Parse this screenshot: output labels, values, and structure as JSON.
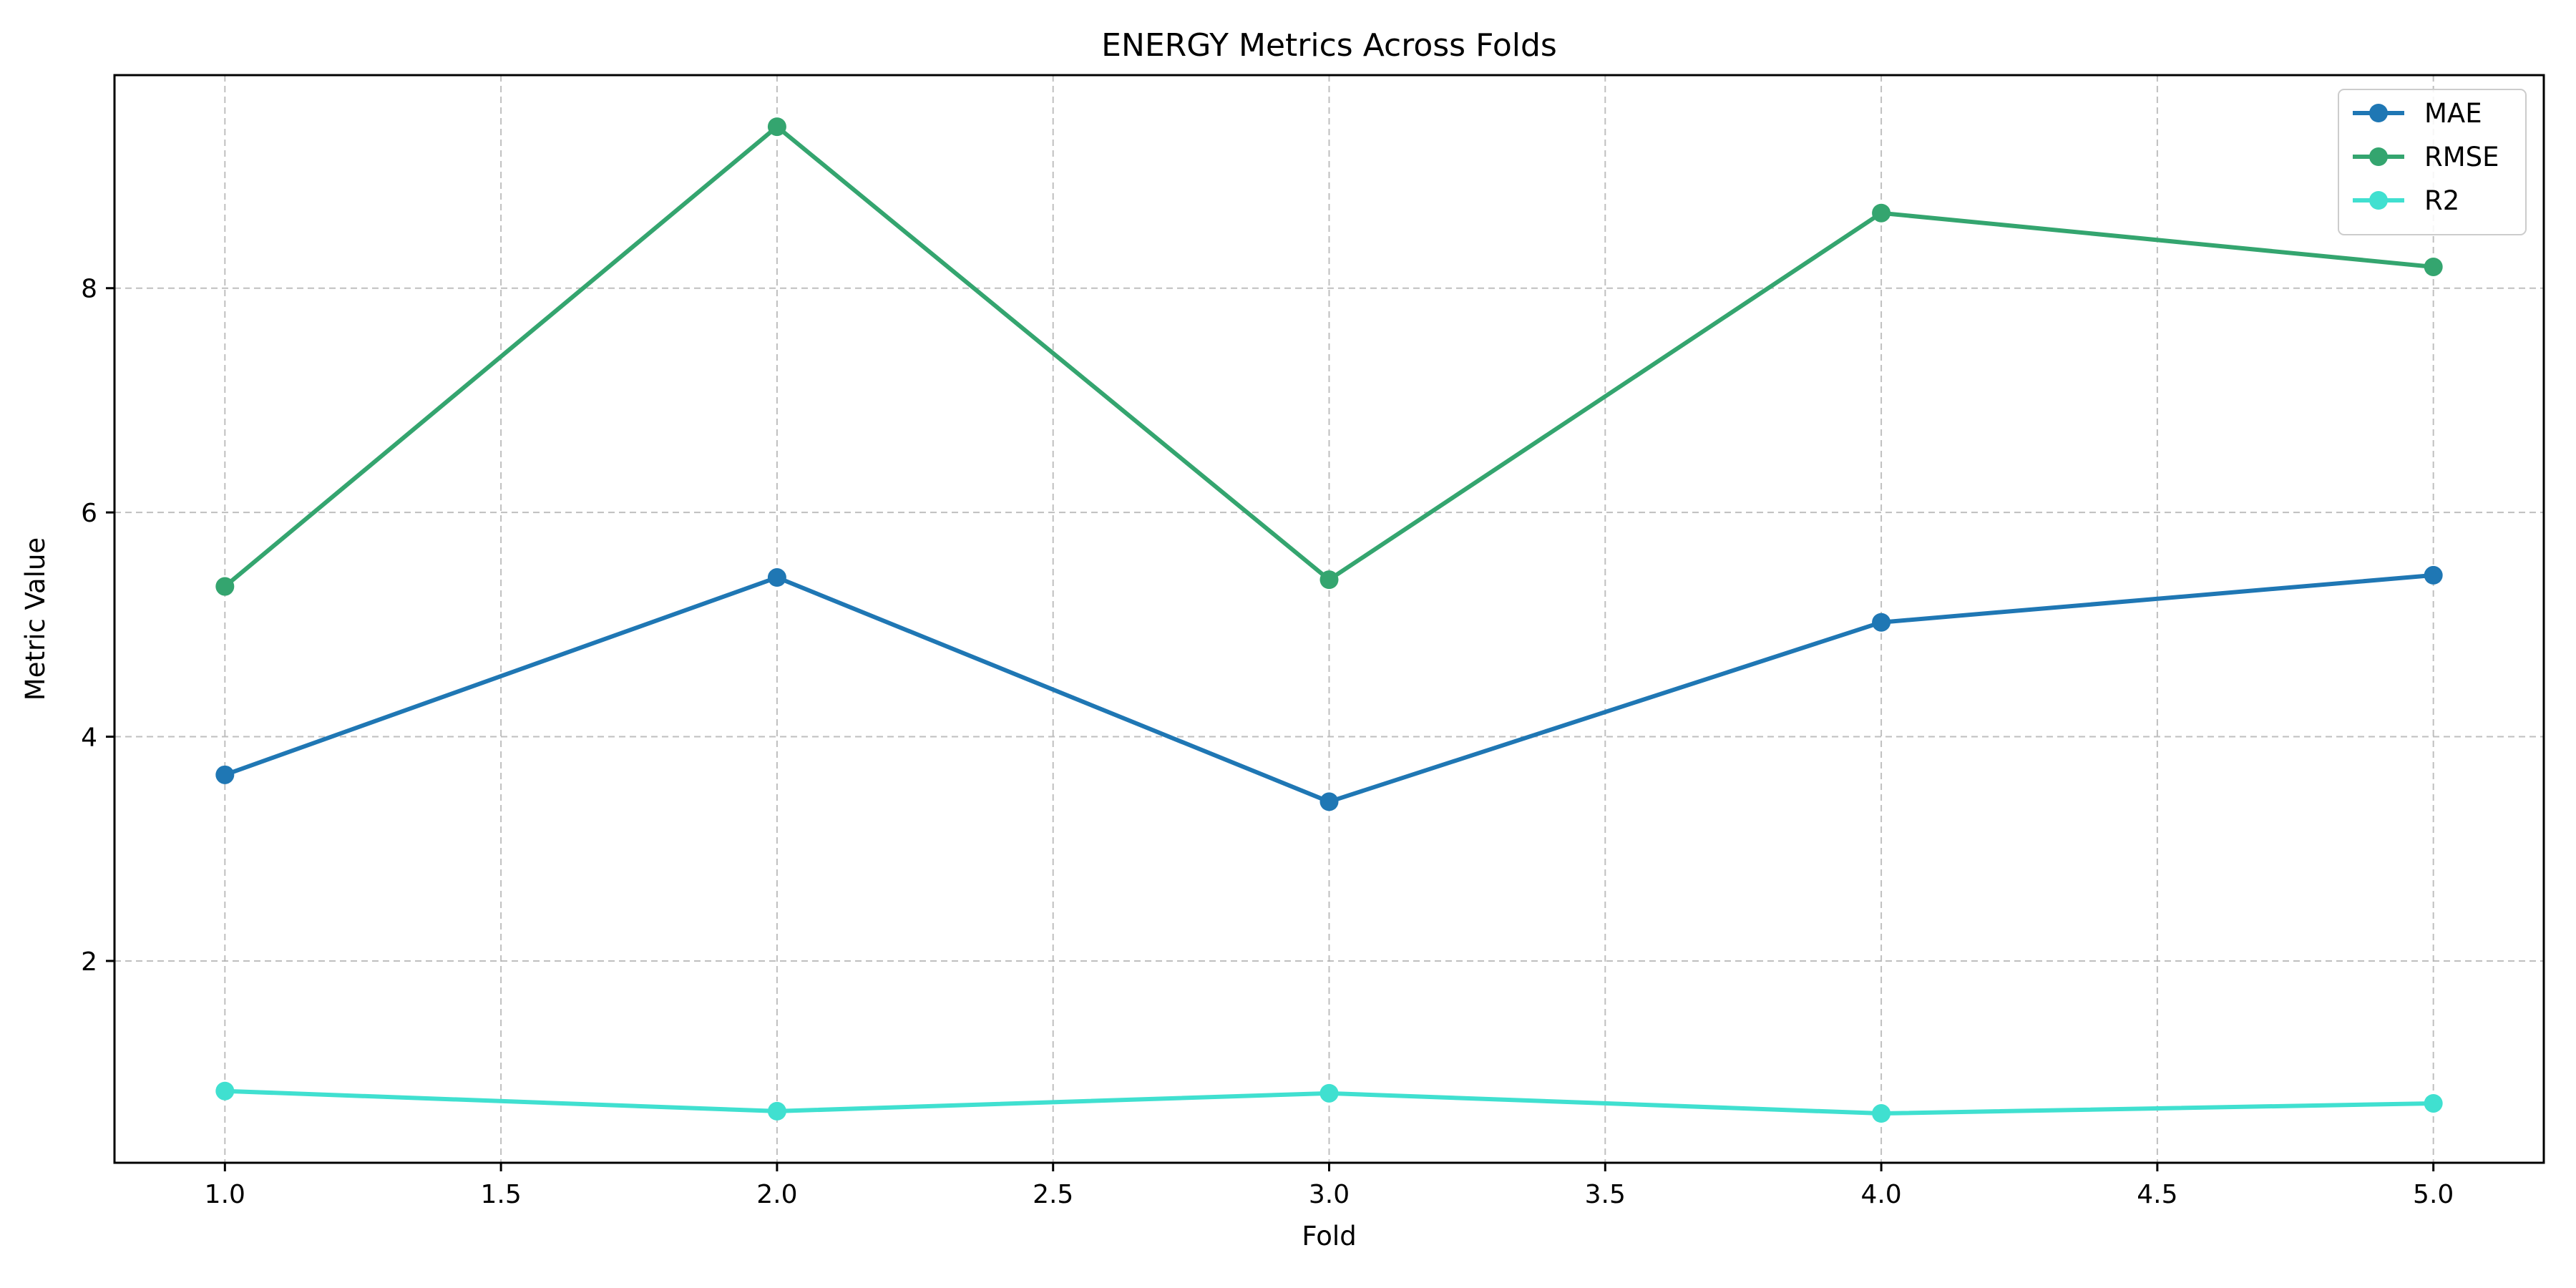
{
  "chart_data": {
    "type": "line",
    "title": "ENERGY Metrics Across Folds",
    "xlabel": "Fold",
    "ylabel": "Metric Value",
    "x": [
      1.0,
      2.0,
      3.0,
      4.0,
      5.0
    ],
    "xlim": [
      0.8,
      5.2
    ],
    "ylim": [
      0.2,
      9.9
    ],
    "x_ticks": [
      "1.0",
      "1.5",
      "2.0",
      "2.5",
      "3.0",
      "3.5",
      "4.0",
      "4.5",
      "5.0"
    ],
    "y_ticks": [
      "2",
      "4",
      "6",
      "8"
    ],
    "grid": true,
    "legend_position": "top-right",
    "series": [
      {
        "name": "MAE",
        "color": "#1f77b4",
        "values": [
          3.66,
          5.42,
          3.42,
          5.02,
          5.44
        ]
      },
      {
        "name": "RMSE",
        "color": "#34a56f",
        "values": [
          5.34,
          9.44,
          5.4,
          8.67,
          8.19
        ]
      },
      {
        "name": "R2",
        "color": "#40e0d0",
        "values": [
          0.84,
          0.66,
          0.82,
          0.64,
          0.73
        ]
      }
    ]
  }
}
